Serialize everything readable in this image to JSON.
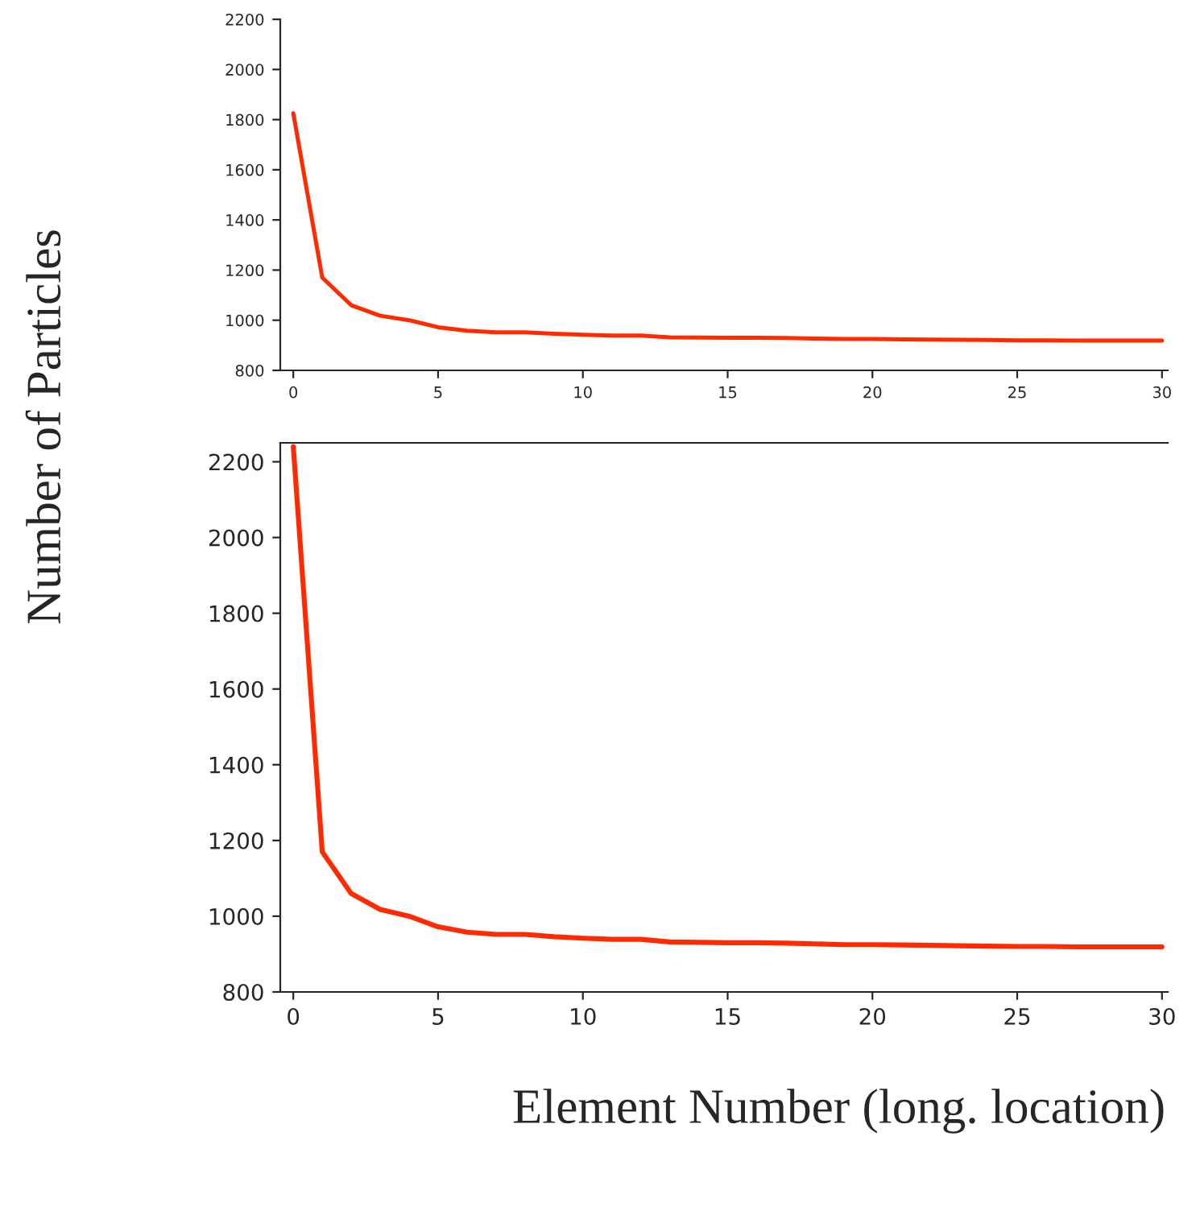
{
  "chart_data": [
    {
      "type": "line",
      "xlabel": "Element Number (long. location)",
      "ylabel": "Number of Particles",
      "x": [
        0,
        1,
        2,
        3,
        4,
        5,
        6,
        7,
        8,
        9,
        10,
        11,
        12,
        13,
        14,
        15,
        16,
        17,
        18,
        19,
        20,
        21,
        22,
        23,
        24,
        25,
        26,
        27,
        28,
        29,
        30
      ],
      "series": [
        {
          "color": "#ff2a00",
          "values": [
            2240,
            1170,
            1060,
            1018,
            1000,
            972,
            958,
            952,
            952,
            946,
            942,
            939,
            939,
            932,
            931,
            930,
            930,
            929,
            927,
            925,
            925,
            924,
            923,
            922,
            921,
            920,
            920,
            919,
            919,
            919,
            919
          ]
        }
      ],
      "xlim": [
        -0.45,
        30.2
      ],
      "ylim": [
        800,
        2250
      ],
      "xticks": [
        0,
        5,
        10,
        15,
        20,
        25,
        30
      ],
      "yticks": [
        800,
        1000,
        1200,
        1400,
        1600,
        1800,
        2000,
        2200
      ],
      "grid": false,
      "legend": false,
      "marker": "none",
      "line_style": "solid"
    },
    {
      "type": "line",
      "x": [
        0,
        1,
        2,
        3,
        4,
        5,
        6,
        7,
        8,
        9,
        10,
        11,
        12,
        13,
        14,
        15,
        16,
        17,
        18,
        19,
        20,
        21,
        22,
        23,
        24,
        25,
        26,
        27,
        28,
        29,
        30
      ],
      "series": [
        {
          "color": "#ff2a00",
          "values": [
            1825,
            1170,
            1060,
            1018,
            1000,
            972,
            958,
            952,
            952,
            946,
            942,
            939,
            939,
            932,
            931,
            930,
            930,
            929,
            927,
            925,
            925,
            924,
            923,
            922,
            921,
            920,
            920,
            919,
            919,
            919,
            919
          ]
        }
      ],
      "xlim": [
        -0.45,
        30.2
      ],
      "ylim": [
        800,
        2200
      ],
      "xticks": [
        0,
        5,
        10,
        15,
        20,
        25,
        30
      ],
      "yticks": [
        800,
        1000,
        1200,
        1400,
        1600,
        1800,
        2000,
        2200
      ],
      "grid": false,
      "legend": false,
      "marker": "none",
      "line_style": "solid"
    }
  ]
}
